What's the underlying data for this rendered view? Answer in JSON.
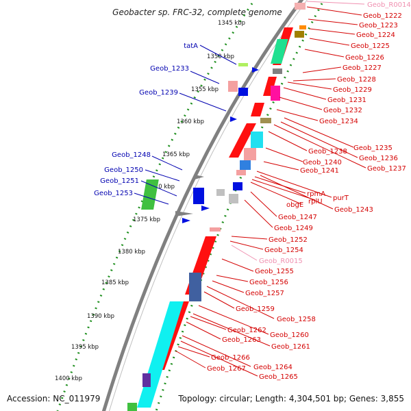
{
  "title": "Geobacter sp. FRC-32, complete genome",
  "footer": {
    "accession": "Accession: NC_011979",
    "topology": "Topology: circular; Length: 4,304,501 bp; Genes: 3,855"
  },
  "kbp_labels": [
    "1345 kbp",
    "1350 kbp",
    "1355 kbp",
    "1360 kbp",
    "1365 kbp",
    "1370 kbp",
    "1375 kbp",
    "1380 kbp",
    "1385 kbp",
    "1390 kbp",
    "1395 kbp",
    "1400 kbp"
  ],
  "labels_right": [
    "Geob_R0014",
    "Geob_1222",
    "Geob_1223",
    "Geob_1224",
    "Geob_1225",
    "Geob_1226",
    "Geob_1227",
    "Geob_1228",
    "Geob_1229",
    "Geob_1231",
    "Geob_1232",
    "Geob_1234",
    "Geob_1235",
    "Geob_1236",
    "Geob_1237",
    "Geob_1238",
    "Geob_1240",
    "Geob_1241",
    "purT",
    "rpmA",
    "rplU",
    "obgE",
    "Geob_1243",
    "Geob_1247",
    "Geob_1249",
    "Geob_1252",
    "Geob_1254",
    "Geob_R0015",
    "Geob_1255",
    "Geob_1256",
    "Geob_1257",
    "Geob_1258",
    "Geob_1259",
    "Geob_1260",
    "Geob_1261",
    "Geob_1262",
    "Geob_1263",
    "Geob_1264",
    "Geob_1265",
    "Geob_1266",
    "Geob_1267"
  ],
  "labels_left": [
    "tatA",
    "Geob_1233",
    "Geob_1239",
    "Geob_1248",
    "Geob_1250",
    "Geob_1251",
    "Geob_1253"
  ],
  "colors": {
    "forward_strand": "#ff1010",
    "reverse_strand": "#0010e0",
    "rna_label": "#f090b0",
    "backbone": "#808080",
    "tick_mark": "#209020"
  }
}
